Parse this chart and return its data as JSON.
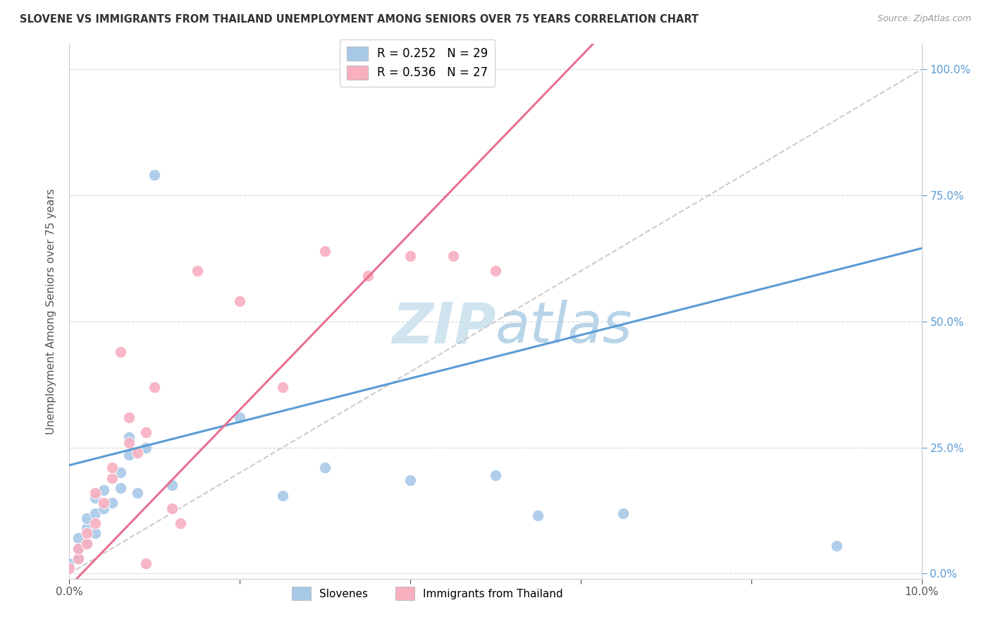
{
  "title": "SLOVENE VS IMMIGRANTS FROM THAILAND UNEMPLOYMENT AMONG SENIORS OVER 75 YEARS CORRELATION CHART",
  "source_text": "Source: ZipAtlas.com",
  "ylabel": "Unemployment Among Seniors over 75 years",
  "xlim": [
    0.0,
    0.1
  ],
  "ylim": [
    -0.01,
    1.05
  ],
  "yticks": [
    0.0,
    0.25,
    0.5,
    0.75,
    1.0
  ],
  "ytick_labels_right": [
    "0.0%",
    "25.0%",
    "50.0%",
    "75.0%",
    "100.0%"
  ],
  "xticks": [
    0.0,
    0.02,
    0.04,
    0.06,
    0.08,
    0.1
  ],
  "xtick_labels": [
    "0.0%",
    "",
    "",
    "",
    "",
    "10.0%"
  ],
  "legend_entries": [
    {
      "label": "Slovenes",
      "color": "#a8c8e8",
      "R": 0.252,
      "N": 29
    },
    {
      "label": "Immigrants from Thailand",
      "color": "#f8b0c0",
      "R": 0.536,
      "N": 27
    }
  ],
  "blue_scatter_color": "#a8c8e8",
  "pink_scatter_color": "#f8b0c0",
  "blue_line_color": "#5b9bd5",
  "pink_line_color": "#e87090",
  "right_axis_color": "#5b9bd5",
  "diag_line_color": "#c0c0c0",
  "watermark_color": "#d0e4f0",
  "grid_color": "#d8d8d8",
  "background_color": "#ffffff",
  "title_color": "#333333",
  "source_color": "#999999",
  "ylabel_color": "#555555",
  "blue_regression_slope": 4.3,
  "blue_regression_intercept": 0.215,
  "pink_regression_slope": 17.5,
  "pink_regression_intercept": -0.025,
  "slovene_x": [
    0.0,
    0.001,
    0.001,
    0.001,
    0.002,
    0.002,
    0.002,
    0.003,
    0.003,
    0.003,
    0.004,
    0.004,
    0.005,
    0.006,
    0.006,
    0.007,
    0.007,
    0.008,
    0.009,
    0.01,
    0.012,
    0.02,
    0.025,
    0.03,
    0.04,
    0.05,
    0.055,
    0.065,
    0.09
  ],
  "slovene_y": [
    0.02,
    0.03,
    0.05,
    0.07,
    0.06,
    0.09,
    0.11,
    0.08,
    0.12,
    0.15,
    0.13,
    0.165,
    0.14,
    0.17,
    0.2,
    0.235,
    0.27,
    0.16,
    0.25,
    0.79,
    0.175,
    0.31,
    0.155,
    0.21,
    0.185,
    0.195,
    0.115,
    0.12,
    0.055
  ],
  "thai_x": [
    0.0,
    0.001,
    0.001,
    0.002,
    0.002,
    0.003,
    0.003,
    0.004,
    0.005,
    0.005,
    0.006,
    0.007,
    0.007,
    0.008,
    0.009,
    0.009,
    0.01,
    0.012,
    0.013,
    0.015,
    0.02,
    0.025,
    0.03,
    0.035,
    0.04,
    0.045,
    0.05
  ],
  "thai_y": [
    0.01,
    0.03,
    0.05,
    0.06,
    0.08,
    0.1,
    0.16,
    0.14,
    0.19,
    0.21,
    0.44,
    0.26,
    0.31,
    0.24,
    0.02,
    0.28,
    0.37,
    0.13,
    0.1,
    0.6,
    0.54,
    0.37,
    0.64,
    0.59,
    0.63,
    0.63,
    0.6
  ]
}
